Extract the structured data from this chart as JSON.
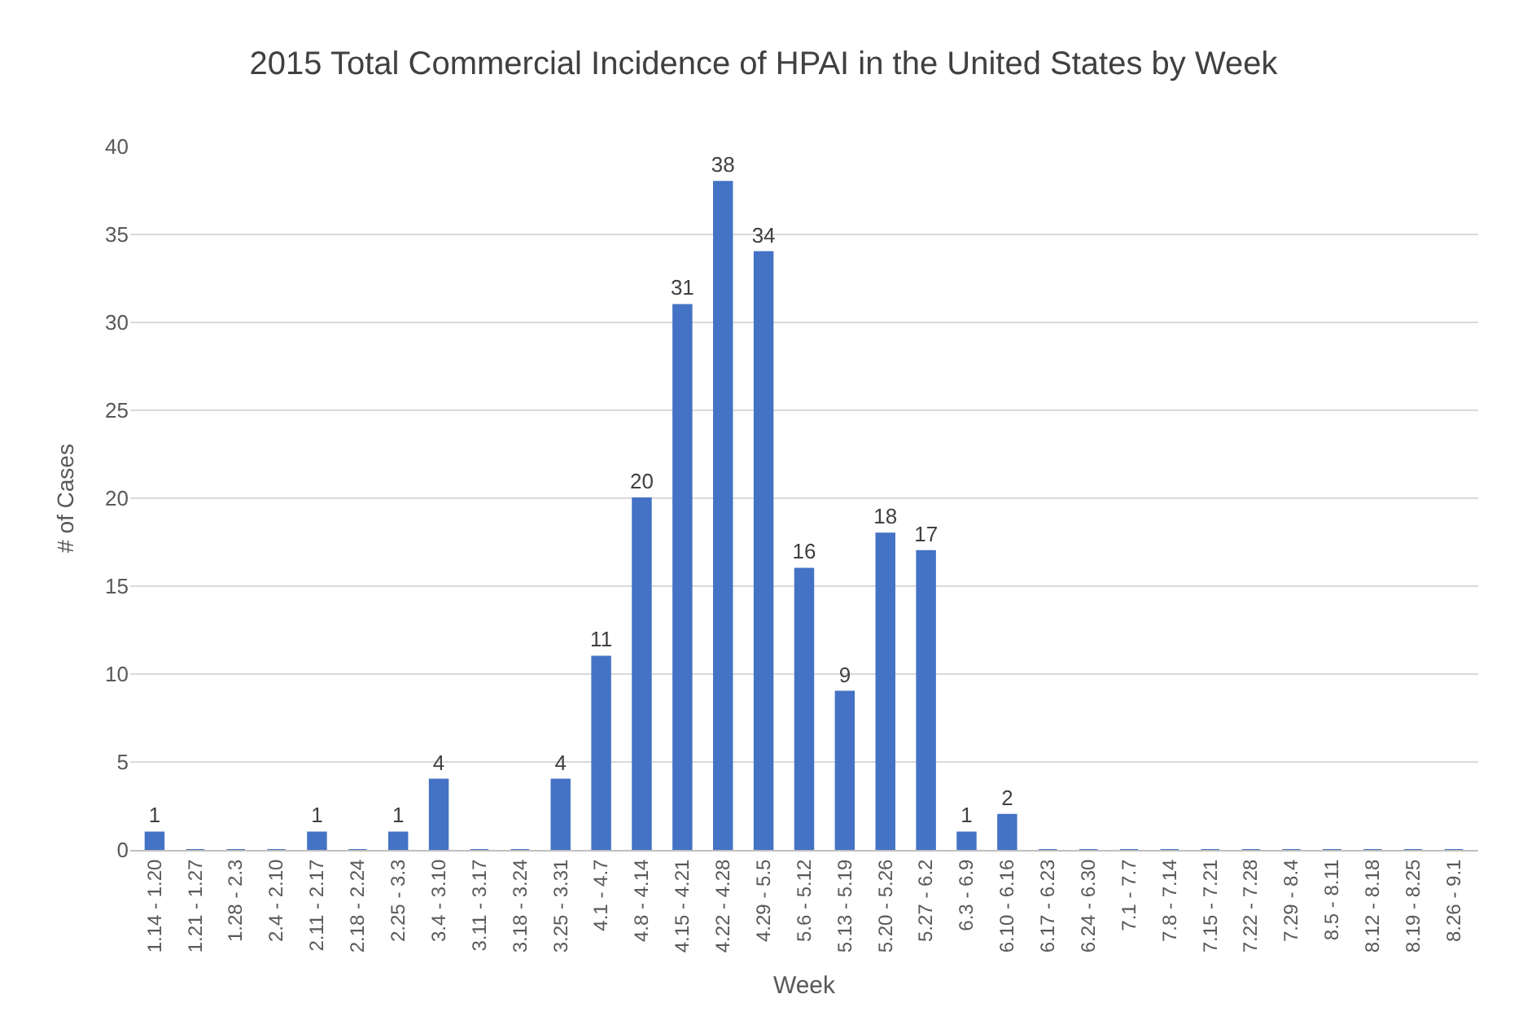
{
  "chart_data": {
    "type": "bar",
    "title": "2015 Total Commercial Incidence of HPAI in the United States by Week",
    "xlabel": "Week",
    "ylabel": "# of Cases",
    "categories": [
      "1.14 - 1.20",
      "1.21 - 1.27",
      "1.28 - 2.3",
      "2.4 - 2.10",
      "2.11 - 2.17",
      "2.18 - 2.24",
      "2.25 - 3.3",
      "3.4 - 3.10",
      "3.11 - 3.17",
      "3.18 - 3.24",
      "3.25 - 3.31",
      "4.1 - 4.7",
      "4.8 - 4.14",
      "4.15 - 4.21",
      "4.22 - 4.28",
      "4.29 - 5.5",
      "5.6 - 5.12",
      "5.13 - 5.19",
      "5.20 - 5.26",
      "5.27 - 6.2",
      "6.3 - 6.9",
      "6.10 - 6.16",
      "6.17 - 6.23",
      "6.24 - 6.30",
      "7.1 - 7.7",
      "7.8 - 7.14",
      "7.15 - 7.21",
      "7.22 - 7.28",
      "7.29 - 8.4",
      "8.5 - 8.11",
      "8.12 - 8.18",
      "8.19 - 8.25",
      "8.26 - 9.1"
    ],
    "values": [
      1,
      0,
      0,
      0,
      1,
      0,
      1,
      4,
      0,
      0,
      4,
      11,
      20,
      31,
      38,
      34,
      16,
      9,
      18,
      17,
      1,
      2,
      0,
      0,
      0,
      0,
      0,
      0,
      0,
      0,
      0,
      0,
      0
    ],
    "value_labels": [
      "1",
      null,
      null,
      null,
      "1",
      null,
      "1",
      "4",
      null,
      null,
      "4",
      "11",
      "20",
      "31",
      "38",
      "34",
      "16",
      "9",
      "18",
      "17",
      "1",
      "2",
      null,
      null,
      null,
      null,
      null,
      null,
      null,
      null,
      null,
      null,
      null
    ],
    "color": "#4472c4",
    "ylim": [
      0,
      40
    ],
    "yticks": [
      0,
      5,
      10,
      15,
      20,
      25,
      30,
      35,
      40
    ],
    "grid": "y"
  }
}
